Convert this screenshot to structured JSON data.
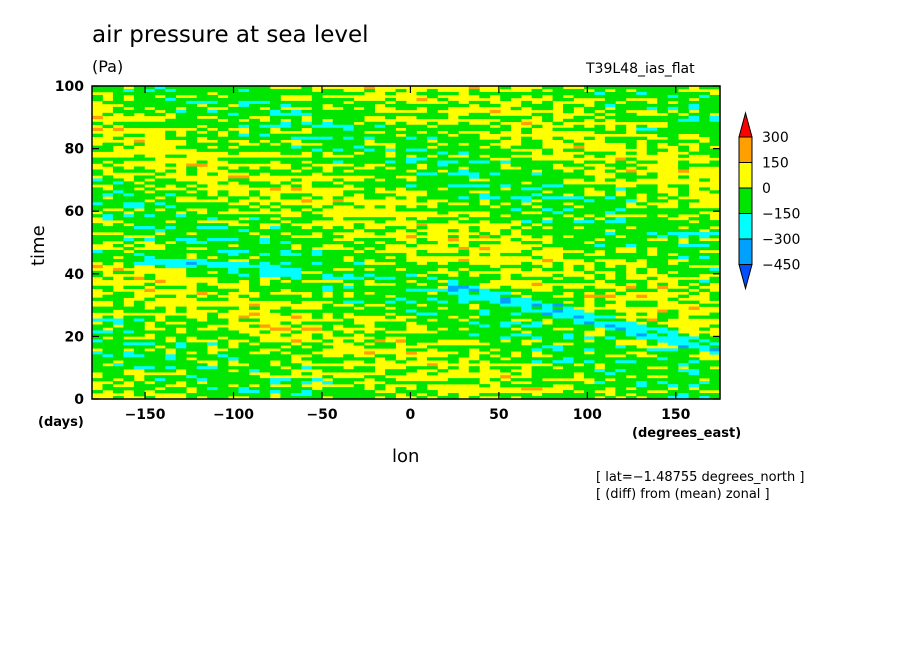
{
  "chart_data": {
    "type": "heatmap",
    "title": "air pressure at sea level",
    "units": "(Pa)",
    "run_name": "T39L48_ias_flat",
    "xlabel": "lon",
    "ylabel": "time",
    "xunits": "(degrees_east)",
    "yunits": "(days)",
    "xlim": [
      -180,
      175
    ],
    "ylim": [
      0,
      100
    ],
    "xticks": [
      "−150",
      "−100",
      "−50",
      "0",
      "50",
      "100",
      "150"
    ],
    "xtick_values": [
      -150,
      -100,
      -50,
      0,
      50,
      100,
      150
    ],
    "yticks": [
      "0",
      "20",
      "40",
      "60",
      "80",
      "100"
    ],
    "ytick_values": [
      0,
      20,
      40,
      60,
      80,
      100
    ],
    "colorbar": {
      "levels": [
        "300",
        "150",
        "0",
        "−150",
        "−300",
        "−450"
      ],
      "level_values": [
        300,
        150,
        0,
        -150,
        -300,
        -450
      ],
      "colors": [
        "#ff0000",
        "#ff9f00",
        "#ffff00",
        "#00e600",
        "#00ffff",
        "#00a0ff",
        "#0050ff"
      ],
      "extend": "both"
    },
    "features": [
      {
        "description": "negative anomaly band (cyan)",
        "lon": [
          20,
          160
        ],
        "time": [
          36,
          18
        ]
      },
      {
        "description": "negative anomaly band west",
        "lon": [
          -180,
          -60
        ],
        "time": [
          46,
          40
        ]
      }
    ],
    "notes": [
      "[ lat=−1.48755 degrees_north ]",
      "[ (diff) from (mean) zonal ]"
    ]
  }
}
